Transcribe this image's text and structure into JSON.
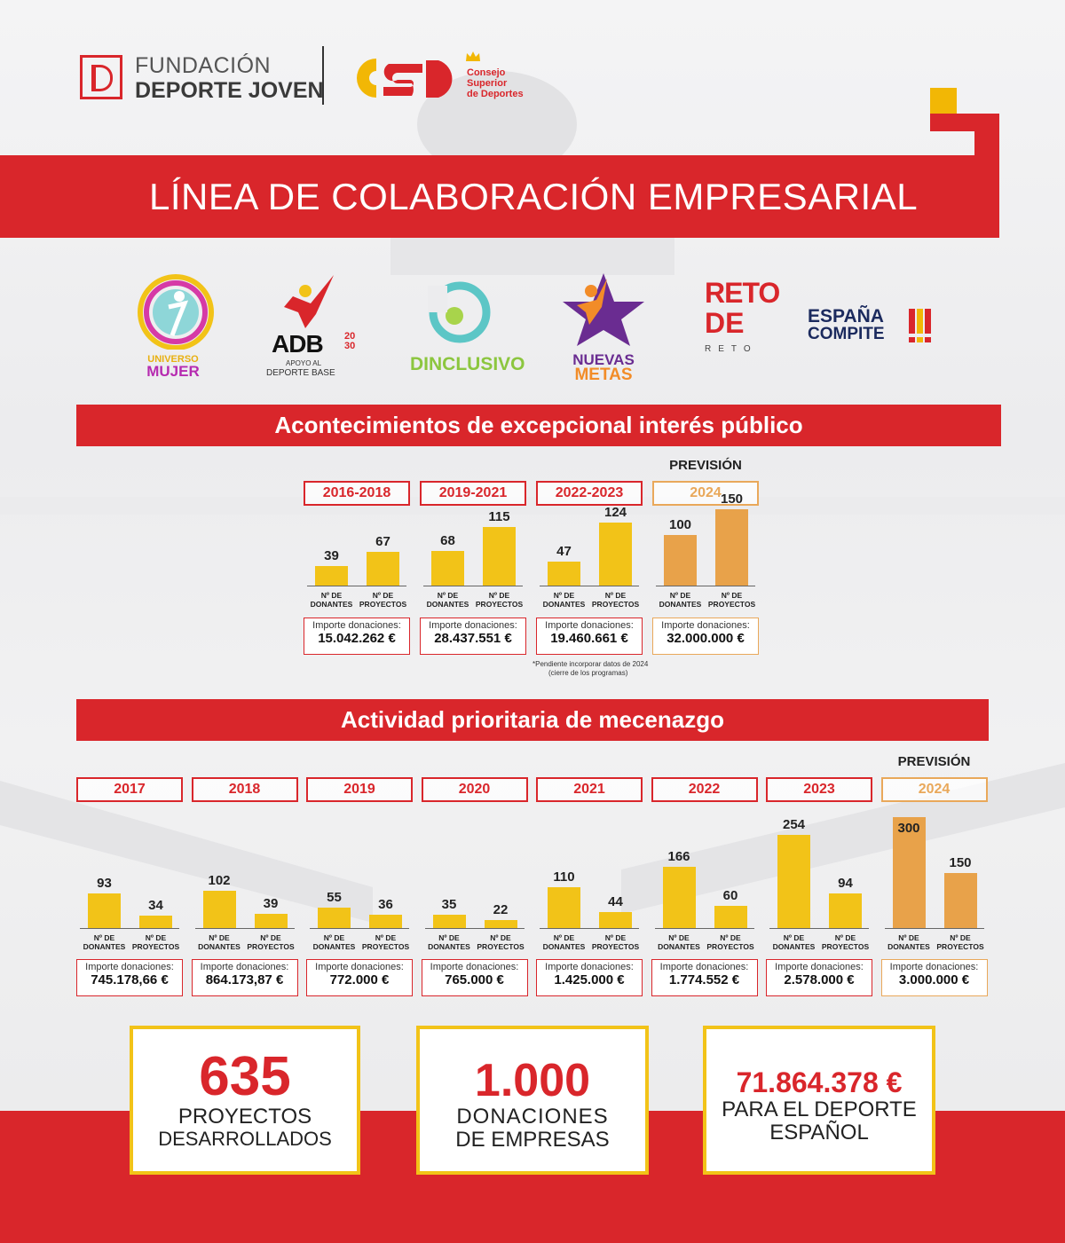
{
  "header": {
    "fdj_line1": "FUNDACIÓN",
    "fdj_line2": "DEPORTE JOVEN",
    "csd_line1": "Consejo",
    "csd_line2": "Superior",
    "csd_line3": "de Deportes",
    "title": "LÍNEA DE COLABORACIÓN EMPRESARIAL"
  },
  "programs": [
    {
      "name": "universo-mujer",
      "line1": "UNIVERSO",
      "line2": "MUJER"
    },
    {
      "name": "adb2030",
      "line1": "ADB",
      "line1b": "20 30",
      "line2": "APOYO AL",
      "line3": "DEPORTE BASE"
    },
    {
      "name": "dinclusivo",
      "line1": "DINCLUSIVO"
    },
    {
      "name": "nuevas-metas",
      "line1": "NUEVAS",
      "line2": "METAS"
    },
    {
      "name": "reto-de-reto",
      "line1": "RETO",
      "line2": "DE",
      "line3": "RETO"
    },
    {
      "name": "espana-compite",
      "line1": "ESPAÑA",
      "line2": "COMPITE"
    }
  ],
  "colors": {
    "red": "#d9262b",
    "yellow": "#f2c318",
    "orange": "#e8a24a"
  },
  "labels": {
    "prevision": "PREVISIÓN",
    "importe": "Importe donaciones:",
    "cat1_l1": "Nº DE",
    "cat1_l2": "DONANTES",
    "cat2_l1": "Nº DE",
    "cat2_l2": "PROYECTOS",
    "footnote_l1": "*Pendiente incorporar datos de 2024",
    "footnote_l2": "(cierre de los programas)"
  },
  "section1": {
    "title": "Acontecimientos de excepcional interés público"
  },
  "section2": {
    "title": "Actividad prioritaria de mecenazgo"
  },
  "chart_data": [
    {
      "type": "bar",
      "title": "Acontecimientos de excepcional interés público",
      "categories": [
        "2016-2018",
        "2019-2021",
        "2022-2023",
        "2024"
      ],
      "series": [
        {
          "name": "Nº DE DONANTES",
          "values": [
            39,
            68,
            47,
            100
          ]
        },
        {
          "name": "Nº DE PROYECTOS",
          "values": [
            67,
            115,
            124,
            150
          ]
        }
      ],
      "importe": [
        "15.042.262 €",
        "28.437.551 €",
        "19.460.661 €",
        "32.000.000 €"
      ],
      "forecast": [
        false,
        false,
        false,
        true
      ]
    },
    {
      "type": "bar",
      "title": "Actividad prioritaria de mecenazgo",
      "categories": [
        "2017",
        "2018",
        "2019",
        "2020",
        "2021",
        "2022",
        "2023",
        "2024"
      ],
      "series": [
        {
          "name": "Nº DE DONANTES",
          "values": [
            93,
            102,
            55,
            35,
            110,
            166,
            254,
            300
          ]
        },
        {
          "name": "Nº DE PROYECTOS",
          "values": [
            34,
            39,
            36,
            22,
            44,
            60,
            94,
            150
          ]
        }
      ],
      "importe": [
        "745.178,66 €",
        "864.173,87 €",
        "772.000 €",
        "765.000 €",
        "1.425.000 €",
        "1.774.552 €",
        "2.578.000 €",
        "3.000.000 €"
      ],
      "forecast": [
        false,
        false,
        false,
        false,
        false,
        false,
        false,
        true
      ]
    }
  ],
  "stats": [
    {
      "big": "635",
      "l1": "PROYECTOS",
      "l2": "DESARROLLADOS"
    },
    {
      "big": "1.000",
      "l1": "DONACIONES",
      "l2": "DE EMPRESAS"
    },
    {
      "big": "71.864.378 €",
      "l1": "PARA EL DEPORTE",
      "l2": "ESPAÑOL"
    }
  ]
}
